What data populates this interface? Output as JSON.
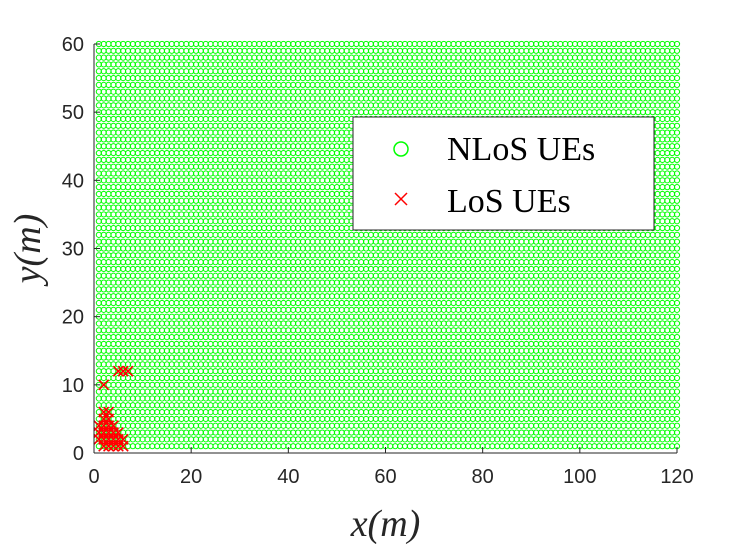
{
  "chart_data": {
    "type": "scatter",
    "xlabel": "x(m)",
    "ylabel": "y(m)",
    "xlim": [
      0,
      120
    ],
    "ylim": [
      0,
      60
    ],
    "xticks": [
      "0",
      "20",
      "40",
      "60",
      "80",
      "100",
      "120"
    ],
    "yticks": [
      "0",
      "10",
      "20",
      "30",
      "40",
      "50",
      "60"
    ],
    "grid": false,
    "legend_placement": "top-right",
    "series": [
      {
        "name": "NLoS UEs",
        "marker": "circle",
        "color": "#00ff00",
        "grid_points": {
          "x_start": 1,
          "x_end": 120,
          "x_step": 1,
          "y_start": 1,
          "y_end": 60,
          "y_step": 1
        }
      },
      {
        "name": "LoS UEs",
        "marker": "x",
        "color": "#ff0000",
        "points": [
          [
            1,
            2
          ],
          [
            1,
            3
          ],
          [
            1,
            4
          ],
          [
            2,
            1
          ],
          [
            2,
            2
          ],
          [
            2,
            3
          ],
          [
            2,
            4
          ],
          [
            2,
            5
          ],
          [
            2,
            6
          ],
          [
            3,
            1
          ],
          [
            3,
            2
          ],
          [
            3,
            3
          ],
          [
            3,
            4
          ],
          [
            3,
            5
          ],
          [
            3,
            6
          ],
          [
            4,
            1
          ],
          [
            4,
            2
          ],
          [
            4,
            3
          ],
          [
            4,
            4
          ],
          [
            5,
            1
          ],
          [
            5,
            2
          ],
          [
            5,
            3
          ],
          [
            6,
            1
          ],
          [
            6,
            2
          ],
          [
            2,
            10
          ],
          [
            5,
            12
          ],
          [
            6,
            12
          ],
          [
            7,
            12
          ]
        ]
      }
    ]
  }
}
